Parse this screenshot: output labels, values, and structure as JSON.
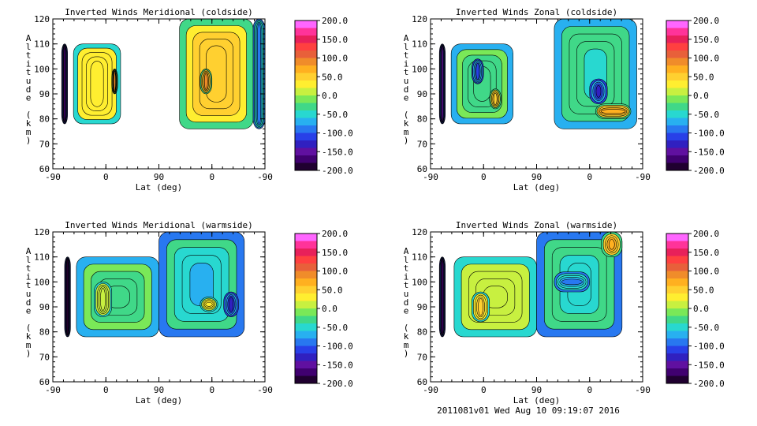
{
  "footer": {
    "stamp": "2011081v01 Wed Aug 10 09:19:07 2016"
  },
  "colorbar": {
    "ticks": [
      "200.0",
      "150.0",
      "100.0",
      "50.0",
      "0.0",
      "-50.0",
      "-100.0",
      "-150.0",
      "-200.0"
    ],
    "range": [
      -200,
      200
    ],
    "colors": [
      "#ff66ff",
      "#ff3399",
      "#e8205a",
      "#ff4040",
      "#e8603a",
      "#f08c2a",
      "#ffb020",
      "#ffd030",
      "#ffee30",
      "#c8f040",
      "#7ae858",
      "#40d888",
      "#28d8d0",
      "#28b0f0",
      "#2878f0",
      "#2840e8",
      "#3020c0",
      "#6010a0",
      "#400070",
      "#200030"
    ]
  },
  "chart_data": [
    {
      "type": "heatmap",
      "title": "Inverted Winds Meridional (coldside)",
      "xlabel": "Lat (deg)",
      "ylabel": "Altitude (km)",
      "xticks": [
        "-90",
        "0",
        "90",
        "0",
        "-90"
      ],
      "yticks": [
        "120",
        "110",
        "100",
        "90",
        "80",
        "70",
        "60"
      ],
      "ylim": [
        60,
        120
      ],
      "regions": [
        {
          "x": [
            -75,
            -65
          ],
          "y": [
            78,
            110
          ],
          "value": -175
        },
        {
          "x": [
            -55,
            25
          ],
          "y": [
            78,
            110
          ],
          "value": 40
        },
        {
          "x": [
            10,
            20
          ],
          "y": [
            90,
            100
          ],
          "value": 90
        },
        {
          "x": [
            125,
            250
          ],
          "y": [
            76,
            120
          ],
          "value": 60
        },
        {
          "x": [
            160,
            180
          ],
          "y": [
            90,
            100
          ],
          "value": 85
        },
        {
          "x": [
            250,
            270
          ],
          "y": [
            76,
            120
          ],
          "value": -80
        }
      ]
    },
    {
      "type": "heatmap",
      "title": "Inverted Winds Zonal (coldside)",
      "xlabel": "Lat (deg)",
      "ylabel": "Altitude (km)",
      "xticks": [
        "-90",
        "0",
        "90",
        "0",
        "-90"
      ],
      "yticks": [
        "120",
        "110",
        "100",
        "90",
        "80",
        "70",
        "60"
      ],
      "ylim": [
        60,
        120
      ],
      "regions": [
        {
          "x": [
            -75,
            -65
          ],
          "y": [
            78,
            110
          ],
          "value": -150
        },
        {
          "x": [
            -55,
            50
          ],
          "y": [
            78,
            110
          ],
          "value": -30
        },
        {
          "x": [
            -20,
            0
          ],
          "y": [
            94,
            104
          ],
          "value": -110
        },
        {
          "x": [
            10,
            30
          ],
          "y": [
            84,
            92
          ],
          "value": 60
        },
        {
          "x": [
            120,
            260
          ],
          "y": [
            76,
            120
          ],
          "value": -40
        },
        {
          "x": [
            180,
            210
          ],
          "y": [
            86,
            96
          ],
          "value": -120
        },
        {
          "x": [
            190,
            250
          ],
          "y": [
            80,
            86
          ],
          "value": 80
        }
      ]
    },
    {
      "type": "heatmap",
      "title": "Inverted Winds Meridional (warmside)",
      "xlabel": "Lat (deg)",
      "ylabel": "Altitude (km)",
      "xticks": [
        "-90",
        "0",
        "90",
        "0",
        "-90"
      ],
      "yticks": [
        "120",
        "110",
        "100",
        "90",
        "80",
        "70",
        "60"
      ],
      "ylim": [
        60,
        120
      ],
      "regions": [
        {
          "x": [
            -70,
            -60
          ],
          "y": [
            78,
            110
          ],
          "value": -180
        },
        {
          "x": [
            -50,
            90
          ],
          "y": [
            78,
            110
          ],
          "value": -30
        },
        {
          "x": [
            -20,
            10
          ],
          "y": [
            86,
            100
          ],
          "value": 10
        },
        {
          "x": [
            90,
            235
          ],
          "y": [
            78,
            120
          ],
          "value": -60
        },
        {
          "x": [
            160,
            190
          ],
          "y": [
            88,
            94
          ],
          "value": 30
        },
        {
          "x": [
            200,
            225
          ],
          "y": [
            86,
            96
          ],
          "value": -120
        }
      ]
    },
    {
      "type": "heatmap",
      "title": "Inverted Winds Zonal (warmside)",
      "xlabel": "Lat (deg)",
      "ylabel": "Altitude (km)",
      "xticks": [
        "-90",
        "0",
        "90",
        "0",
        "-90"
      ],
      "yticks": [
        "120",
        "110",
        "100",
        "90",
        "80",
        "70",
        "60"
      ],
      "ylim": [
        60,
        120
      ],
      "regions": [
        {
          "x": [
            -75,
            -65
          ],
          "y": [
            78,
            110
          ],
          "value": -170
        },
        {
          "x": [
            -50,
            90
          ],
          "y": [
            78,
            110
          ],
          "value": 20
        },
        {
          "x": [
            -20,
            10
          ],
          "y": [
            84,
            96
          ],
          "value": 50
        },
        {
          "x": [
            90,
            235
          ],
          "y": [
            78,
            120
          ],
          "value": -50
        },
        {
          "x": [
            200,
            235
          ],
          "y": [
            110,
            120
          ],
          "value": 80
        },
        {
          "x": [
            120,
            180
          ],
          "y": [
            96,
            104
          ],
          "value": -80
        }
      ]
    }
  ]
}
